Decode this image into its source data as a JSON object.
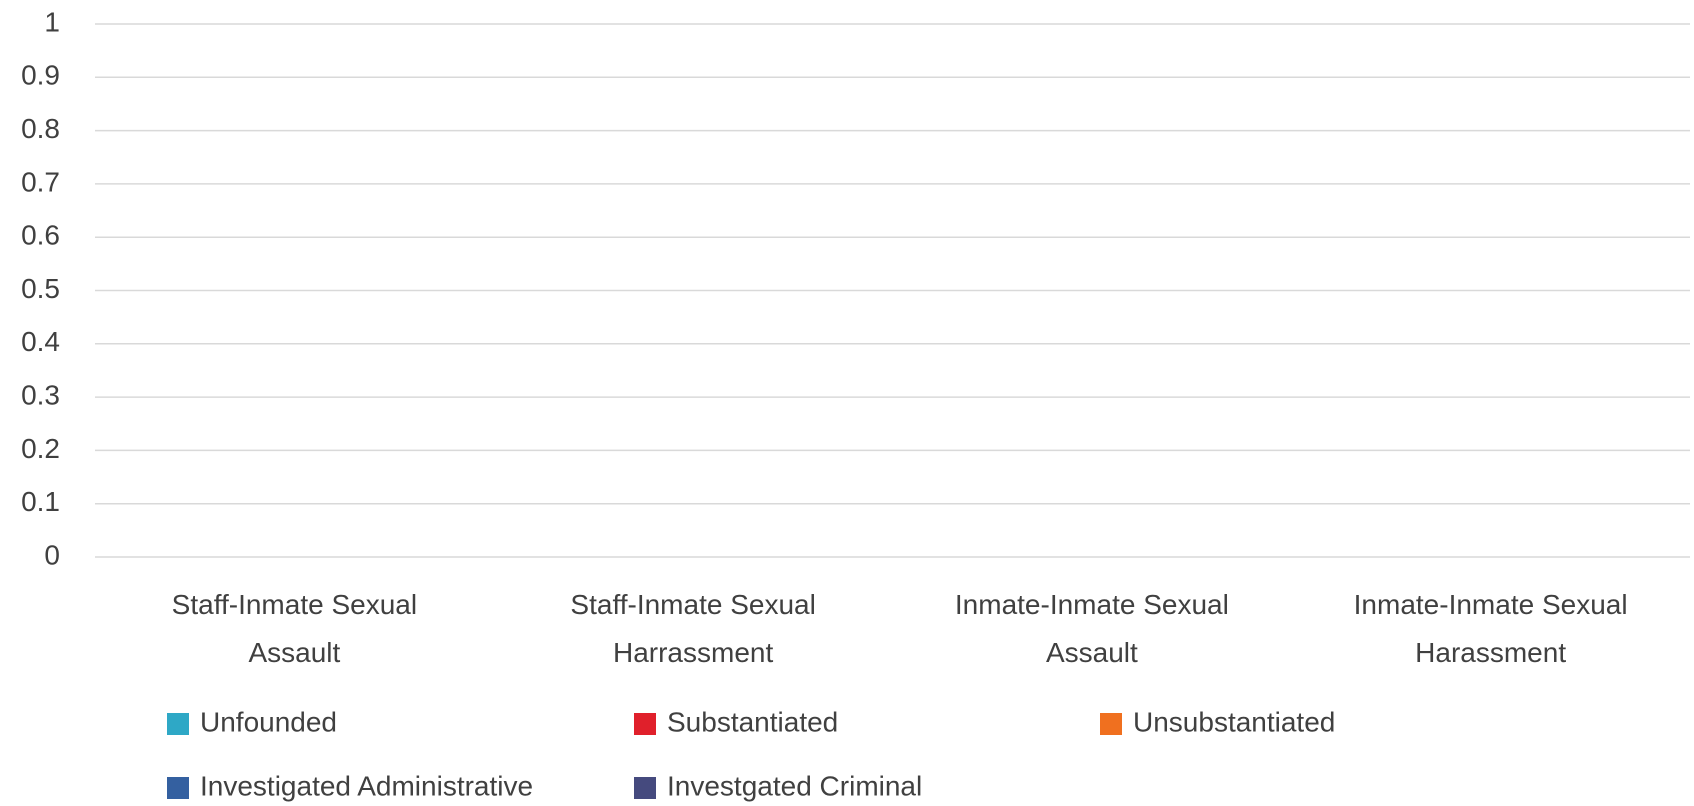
{
  "chart_data": {
    "type": "bar",
    "categories": [
      "Staff-Inmate Sexual Assault",
      "Staff-Inmate Sexual Harrassment",
      "Inmate-Inmate Sexual Assault",
      "Inmate-Inmate Sexual Harassment"
    ],
    "series": [
      {
        "name": "Unfounded",
        "color": "#2ea8c6",
        "values": [
          0,
          0,
          0,
          0
        ]
      },
      {
        "name": "Substantiated",
        "color": "#e0202b",
        "values": [
          0,
          0,
          0,
          0
        ]
      },
      {
        "name": "Unsubstantiated",
        "color": "#f0701f",
        "values": [
          0,
          0,
          0,
          0
        ]
      },
      {
        "name": "Investigated Administrative",
        "color": "#3460a0",
        "values": [
          0,
          0,
          0,
          0
        ]
      },
      {
        "name": "Investgated Criminal",
        "color": "#454a7e",
        "values": [
          0,
          0,
          0,
          0
        ]
      }
    ],
    "ylim": [
      0,
      1
    ],
    "yticks": [
      0,
      0.1,
      0.2,
      0.3,
      0.4,
      0.5,
      0.6,
      0.7,
      0.8,
      0.9,
      1
    ],
    "grid": true,
    "legend": "bottom"
  }
}
